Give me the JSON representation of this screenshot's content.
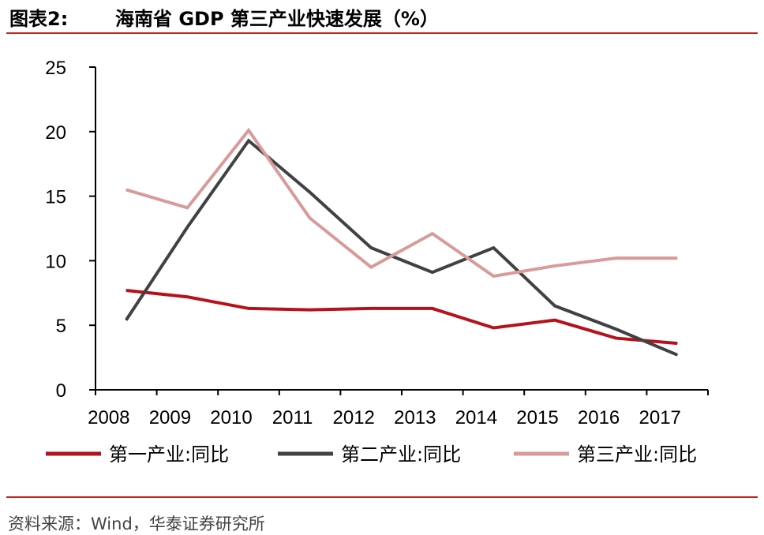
{
  "figure": {
    "label": "图表2:",
    "title": "海南省 GDP 第三产业快速发展（%）"
  },
  "source": "资料来源：Wind，华泰证券研究所",
  "chart_data": {
    "type": "line",
    "x": [
      "2008",
      "2009",
      "2010",
      "2011",
      "2012",
      "2013",
      "2014",
      "2015",
      "2016",
      "2017"
    ],
    "ylim": [
      0,
      25
    ],
    "yticks": [
      "0",
      "5",
      "10",
      "15",
      "20",
      "25"
    ],
    "grid": false,
    "legend": "bottom",
    "series": [
      {
        "name": "第一产业:同比",
        "color": "#b5121b",
        "values": [
          7.7,
          7.2,
          6.3,
          6.2,
          6.3,
          6.3,
          4.8,
          5.4,
          4.0,
          3.6
        ]
      },
      {
        "name": "第二产业:同比",
        "color": "#414042",
        "values": [
          5.4,
          12.6,
          19.3,
          15.3,
          11.0,
          9.1,
          11.0,
          6.5,
          4.7,
          2.7
        ]
      },
      {
        "name": "第三产业:同比",
        "color": "#d89a9a",
        "values": [
          15.5,
          14.1,
          20.1,
          13.3,
          9.5,
          12.1,
          8.8,
          9.6,
          10.2,
          10.2
        ]
      }
    ]
  }
}
